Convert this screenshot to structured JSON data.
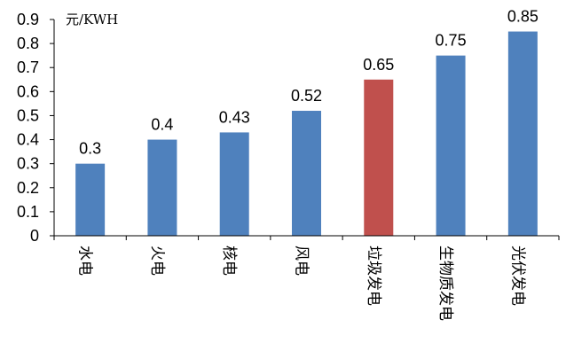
{
  "chart_data": {
    "type": "bar",
    "title": "",
    "xlabel": "",
    "ylabel": "元/KWH",
    "categories": [
      "水电",
      "火电",
      "核电",
      "风电",
      "垃圾发电",
      "生物质发电",
      "光伏发电"
    ],
    "values": [
      0.3,
      0.4,
      0.43,
      0.52,
      0.65,
      0.75,
      0.85
    ],
    "value_labels": [
      "0.3",
      "0.4",
      "0.43",
      "0.52",
      "0.65",
      "0.75",
      "0.85"
    ],
    "bar_colors": [
      "#4f81bd",
      "#4f81bd",
      "#4f81bd",
      "#4f81bd",
      "#c0504d",
      "#4f81bd",
      "#4f81bd"
    ],
    "ylim": [
      0,
      0.9
    ],
    "yticks": [
      0,
      0.1,
      0.2,
      0.3,
      0.4,
      0.5,
      0.6,
      0.7,
      0.8,
      0.9
    ],
    "ytick_labels": [
      "0",
      "0.1",
      "0.2",
      "0.3",
      "0.4",
      "0.5",
      "0.6",
      "0.7",
      "0.8",
      "0.9"
    ],
    "grid": false,
    "legend": "none"
  }
}
